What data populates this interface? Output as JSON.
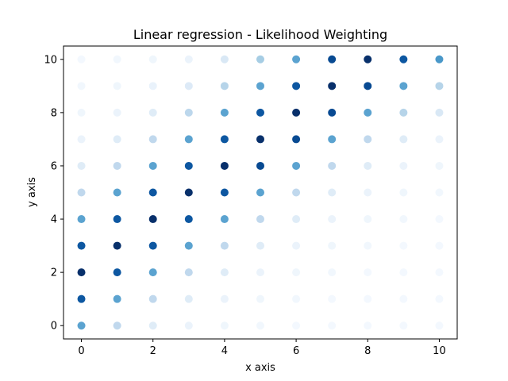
{
  "chart_data": {
    "type": "scatter",
    "title": "Linear regression - Likelihood Weighting",
    "xlabel": "x axis",
    "ylabel": "y axis",
    "xlim": [
      -0.5,
      10.5
    ],
    "ylim": [
      -0.5,
      10.5
    ],
    "xticks": [
      0,
      2,
      4,
      6,
      8,
      10
    ],
    "yticks": [
      0,
      2,
      4,
      6,
      8,
      10
    ],
    "colormap": "Blues",
    "grid": false,
    "legend": false,
    "color_ramp": [
      "#f7fbff",
      "#deebf7",
      "#c6dbef",
      "#9ecae1",
      "#6baed6",
      "#4292c6",
      "#2171b5",
      "#08519c",
      "#08306b"
    ],
    "rows": [
      {
        "y": 10,
        "weights": [
          0.02,
          0.03,
          0.04,
          0.06,
          0.15,
          0.35,
          0.55,
          0.9,
          1.0,
          0.85,
          0.6
        ]
      },
      {
        "y": 9,
        "weights": [
          0.03,
          0.04,
          0.07,
          0.13,
          0.3,
          0.55,
          0.85,
          1.0,
          0.9,
          0.55,
          0.3
        ]
      },
      {
        "y": 8,
        "weights": [
          0.04,
          0.06,
          0.12,
          0.28,
          0.55,
          0.85,
          1.0,
          0.9,
          0.55,
          0.3,
          0.15
        ]
      },
      {
        "y": 7,
        "weights": [
          0.06,
          0.12,
          0.27,
          0.55,
          0.85,
          1.0,
          0.9,
          0.55,
          0.27,
          0.12,
          0.06
        ]
      },
      {
        "y": 6,
        "weights": [
          0.12,
          0.27,
          0.55,
          0.85,
          1.0,
          0.9,
          0.55,
          0.27,
          0.12,
          0.06,
          0.04
        ]
      },
      {
        "y": 5,
        "weights": [
          0.27,
          0.55,
          0.85,
          1.0,
          0.85,
          0.55,
          0.27,
          0.12,
          0.06,
          0.04,
          0.03
        ]
      },
      {
        "y": 4,
        "weights": [
          0.55,
          0.85,
          1.0,
          0.85,
          0.55,
          0.27,
          0.12,
          0.06,
          0.04,
          0.03,
          0.02
        ]
      },
      {
        "y": 3,
        "weights": [
          0.85,
          1.0,
          0.85,
          0.55,
          0.27,
          0.12,
          0.06,
          0.04,
          0.03,
          0.02,
          0.02
        ]
      },
      {
        "y": 2,
        "weights": [
          1.0,
          0.85,
          0.55,
          0.27,
          0.12,
          0.06,
          0.04,
          0.03,
          0.02,
          0.02,
          0.02
        ]
      },
      {
        "y": 1,
        "weights": [
          0.85,
          0.55,
          0.27,
          0.12,
          0.06,
          0.04,
          0.03,
          0.02,
          0.02,
          0.02,
          0.02
        ]
      },
      {
        "y": 0,
        "weights": [
          0.55,
          0.27,
          0.12,
          0.06,
          0.04,
          0.03,
          0.02,
          0.02,
          0.02,
          0.02,
          0.02
        ]
      }
    ],
    "x": [
      0,
      1,
      2,
      3,
      4,
      5,
      6,
      7,
      8,
      9,
      10
    ]
  }
}
